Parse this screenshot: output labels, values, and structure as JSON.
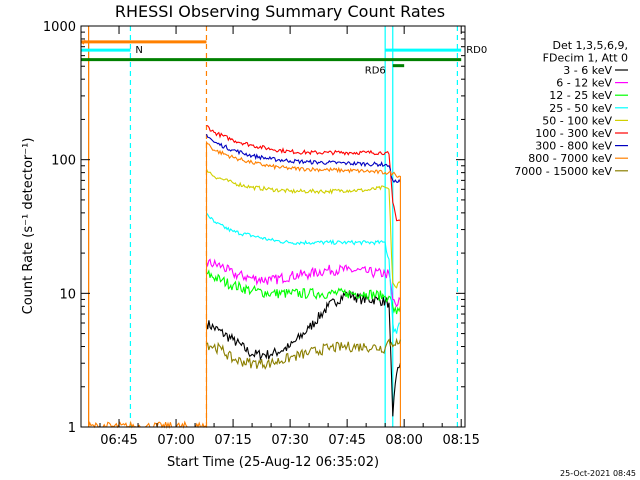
{
  "chart_data": {
    "type": "line",
    "title": "RHESSI Observing Summary Count Rates",
    "xlabel": "Start Time (25-Aug-12 06:35:02)",
    "ylabel": "Count Rate (s⁻¹ detector⁻¹)",
    "xlim": [
      "06:35",
      "08:16"
    ],
    "ylim": [
      1,
      1000
    ],
    "yscale": "log",
    "x_ticks": [
      "06:45",
      "07:00",
      "07:15",
      "07:30",
      "07:45",
      "08:00",
      "08:15"
    ],
    "y_ticks": [
      "1",
      "10",
      "100",
      "1000"
    ],
    "grid": false,
    "legend_position": "right",
    "legend_header": [
      "Det 1,3,5,6,9,",
      "FDecim 1, Att 0"
    ],
    "series": [
      {
        "name": "3 - 6 keV",
        "color": "#000000",
        "x": [
          "07:08",
          "07:15",
          "07:20",
          "07:25",
          "07:30",
          "07:35",
          "07:40",
          "07:45",
          "07:49",
          "07:53",
          "07:56",
          "07:57",
          "07:58",
          "07:59"
        ],
        "values": [
          6,
          4.5,
          3.5,
          3.5,
          4,
          5.5,
          8,
          10,
          9,
          9,
          8.5,
          1.2,
          2.5,
          3
        ]
      },
      {
        "name": "6 - 12 keV",
        "color": "#ff00ff",
        "x": [
          "07:08",
          "07:12",
          "07:15",
          "07:20",
          "07:25",
          "07:30",
          "07:35",
          "07:40",
          "07:45",
          "07:50",
          "07:55",
          "07:56",
          "07:57",
          "07:58",
          "07:59"
        ],
        "values": [
          17,
          16,
          14,
          13,
          12.5,
          13.5,
          14,
          15,
          15,
          14.5,
          14,
          14,
          9,
          8,
          9
        ]
      },
      {
        "name": "12 - 25 keV",
        "color": "#00ff00",
        "x": [
          "07:08",
          "07:12",
          "07:15",
          "07:20",
          "07:25",
          "07:30",
          "07:35",
          "07:40",
          "07:45",
          "07:50",
          "07:55",
          "07:56",
          "07:57",
          "07:58",
          "07:59"
        ],
        "values": [
          14,
          12.5,
          11.5,
          10.5,
          10,
          10,
          10,
          10,
          10,
          10,
          9.5,
          9.5,
          8,
          7,
          8
        ]
      },
      {
        "name": "25 - 50 keV",
        "color": "#00ffff",
        "x": [
          "07:08",
          "07:10",
          "07:15",
          "07:20",
          "07:25",
          "07:30",
          "07:35",
          "07:40",
          "07:45",
          "07:50",
          "07:55",
          "07:56",
          "07:57",
          "07:58",
          "07:59"
        ],
        "values": [
          40,
          34,
          29,
          27,
          25,
          24,
          24,
          24,
          24,
          24,
          24,
          18,
          6,
          5,
          6
        ]
      },
      {
        "name": "50 - 100 keV",
        "color": "#d0d000",
        "x": [
          "07:08",
          "07:10",
          "07:15",
          "07:20",
          "07:25",
          "07:30",
          "07:35",
          "07:40",
          "07:45",
          "07:50",
          "07:55",
          "07:56",
          "07:57",
          "07:58",
          "07:59"
        ],
        "values": [
          85,
          75,
          67,
          62,
          60,
          58,
          58,
          58,
          59,
          59,
          62,
          60,
          12,
          11,
          12
        ]
      },
      {
        "name": "100 - 300 keV",
        "color": "#ff0000",
        "x": [
          "07:08",
          "07:10",
          "07:15",
          "07:20",
          "07:25",
          "07:30",
          "07:35",
          "07:40",
          "07:45",
          "07:50",
          "07:55",
          "07:56",
          "07:57",
          "07:58",
          "07:59"
        ],
        "values": [
          180,
          160,
          140,
          128,
          120,
          115,
          113,
          113,
          113,
          113,
          113,
          110,
          48,
          35,
          35
        ]
      },
      {
        "name": "300 - 800 keV",
        "color": "#0000c0",
        "x": [
          "07:08",
          "07:10",
          "07:15",
          "07:20",
          "07:25",
          "07:30",
          "07:35",
          "07:40",
          "07:45",
          "07:50",
          "07:55",
          "07:56",
          "07:57",
          "07:58",
          "07:59"
        ],
        "values": [
          155,
          135,
          118,
          107,
          101,
          98,
          96,
          95,
          94,
          93,
          92,
          90,
          70,
          68,
          68
        ]
      },
      {
        "name": "800 - 7000 keV",
        "color": "#ff8000",
        "x": [
          "06:35",
          "06:37",
          "06:37",
          "07:08",
          "07:08",
          "07:10",
          "07:15",
          "07:20",
          "07:25",
          "07:30",
          "07:35",
          "07:40",
          "07:45",
          "07:50",
          "07:55",
          "07:57",
          "07:59",
          "07:59"
        ],
        "values": [
          760,
          760,
          1,
          1,
          135,
          118,
          104,
          95,
          89,
          86,
          85,
          84,
          83,
          82,
          80,
          79,
          75,
          1
        ]
      },
      {
        "name": "7000 - 15000 keV",
        "color": "#8b7f00",
        "x": [
          "07:08",
          "07:12",
          "07:15",
          "07:20",
          "07:25",
          "07:30",
          "07:35",
          "07:40",
          "07:45",
          "07:50",
          "07:55",
          "07:56",
          "07:57",
          "07:58",
          "07:59"
        ],
        "values": [
          4.2,
          3.8,
          3.2,
          3,
          3,
          3.3,
          3.6,
          3.9,
          4,
          4,
          3.9,
          4.5,
          4,
          4.5,
          4.5
        ]
      }
    ],
    "annotations": [
      {
        "text": "N",
        "color": "#00ffff",
        "x_range": [
          "06:35",
          "06:48"
        ],
        "y": 660
      },
      {
        "text": "RD0",
        "color": "#00ffff",
        "x_range": [
          "07:55",
          "08:15"
        ],
        "y": 660
      },
      {
        "text": "RD6",
        "color": "#008000",
        "x_range": [
          "07:57",
          "08:00"
        ],
        "y": 505
      },
      {
        "text": "",
        "color": "#008000",
        "x_range": [
          "06:35",
          "08:15"
        ],
        "y": 560
      }
    ],
    "vertical_markers": [
      {
        "x": "06:37",
        "color": "#ff8000",
        "style": "solid"
      },
      {
        "x": "06:48",
        "color": "#00ffff",
        "style": "dashed"
      },
      {
        "x": "07:08",
        "color": "#ff8000",
        "style": "dashed"
      },
      {
        "x": "07:55",
        "color": "#00ffff",
        "style": "solid"
      },
      {
        "x": "07:57",
        "color": "#00ffff",
        "style": "solid"
      },
      {
        "x": "08:14",
        "color": "#00ffff",
        "style": "dashed"
      }
    ]
  },
  "timestamp": "25-Oct-2021 08:45"
}
